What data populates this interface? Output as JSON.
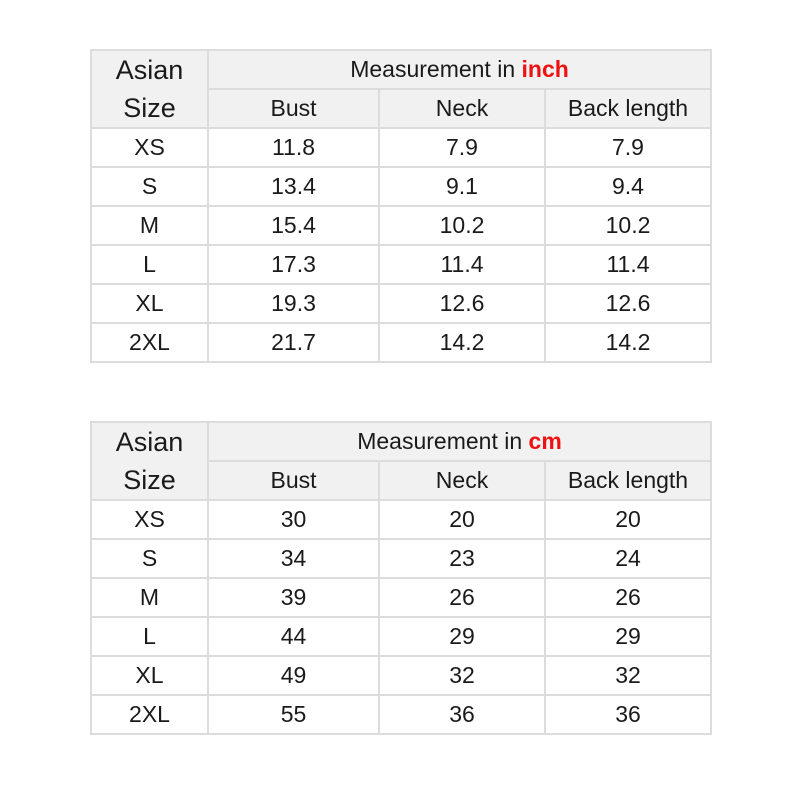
{
  "tables": [
    {
      "size_header": [
        "Asian",
        "Size"
      ],
      "measurement_prefix": "Measurement in ",
      "unit": "inch",
      "unit_color": "#ee1111",
      "columns": [
        "Bust",
        "Neck",
        "Back length"
      ],
      "rows": [
        [
          "XS",
          "11.8",
          "7.9",
          "7.9"
        ],
        [
          "S",
          "13.4",
          "9.1",
          "9.4"
        ],
        [
          "M",
          "15.4",
          "10.2",
          "10.2"
        ],
        [
          "L",
          "17.3",
          "11.4",
          "11.4"
        ],
        [
          "XL",
          "19.3",
          "12.6",
          "12.6"
        ],
        [
          "2XL",
          "21.7",
          "14.2",
          "14.2"
        ]
      ]
    },
    {
      "size_header": [
        "Asian",
        "Size"
      ],
      "measurement_prefix": "Measurement in ",
      "unit": "cm",
      "unit_color": "#ee1111",
      "columns": [
        "Bust",
        "Neck",
        "Back length"
      ],
      "rows": [
        [
          "XS",
          "30",
          "20",
          "20"
        ],
        [
          "S",
          "34",
          "23",
          "24"
        ],
        [
          "M",
          "39",
          "26",
          "26"
        ],
        [
          "L",
          "44",
          "29",
          "29"
        ],
        [
          "XL",
          "49",
          "32",
          "32"
        ],
        [
          "2XL",
          "55",
          "36",
          "36"
        ]
      ]
    }
  ]
}
